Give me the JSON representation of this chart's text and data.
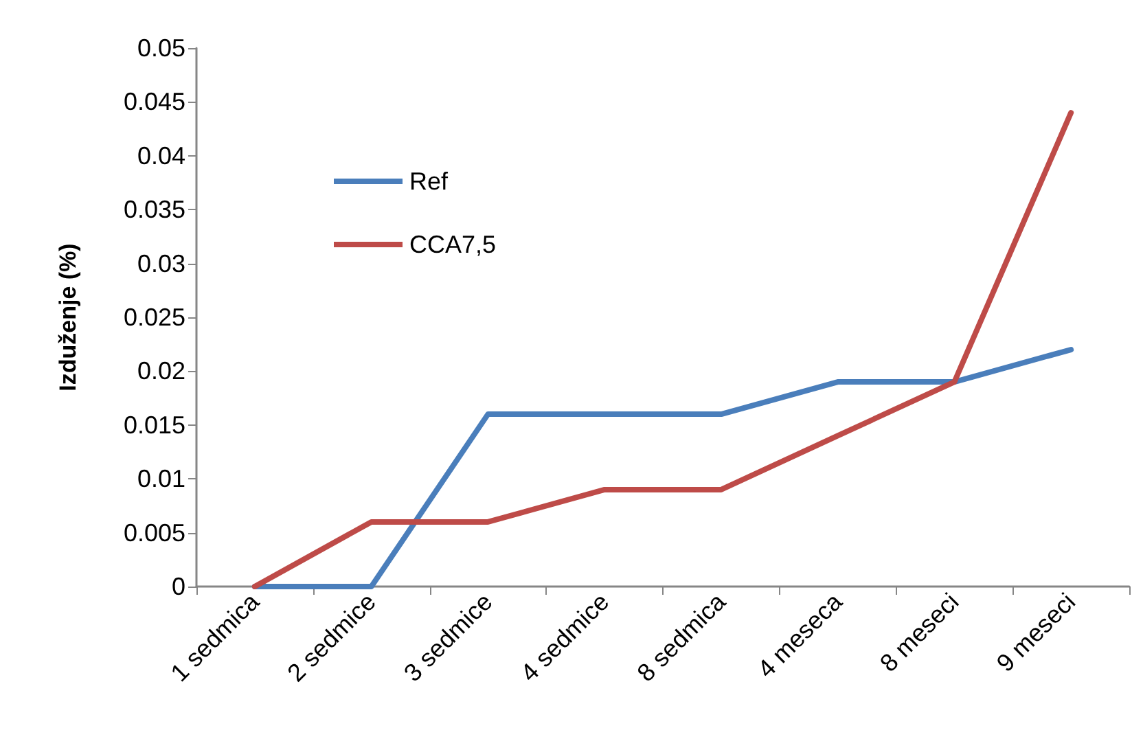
{
  "chart_data": {
    "type": "line",
    "ylabel": "Izduženje (%)",
    "categories": [
      "1 sedmica",
      "2 sedmice",
      "3 sedmice",
      "4 sedmice",
      "8 sedmica",
      "4 meseca",
      "8 meseci",
      "9 meseci"
    ],
    "series": [
      {
        "name": "Ref",
        "color": "#4a7ebb",
        "values": [
          0,
          0,
          0.016,
          0.016,
          0.016,
          0.019,
          0.019,
          0.022
        ]
      },
      {
        "name": "CCA7,5",
        "color": "#be4b48",
        "values": [
          0,
          0.006,
          0.006,
          0.009,
          0.009,
          0.014,
          0.019,
          0.044
        ]
      }
    ],
    "ylim": [
      0,
      0.05
    ],
    "yticks": [
      0,
      0.005,
      0.01,
      0.015,
      0.02,
      0.025,
      0.03,
      0.035,
      0.04,
      0.045,
      0.05
    ],
    "grid": false,
    "legend": "top left",
    "marker": "none",
    "line_style": "solid"
  }
}
